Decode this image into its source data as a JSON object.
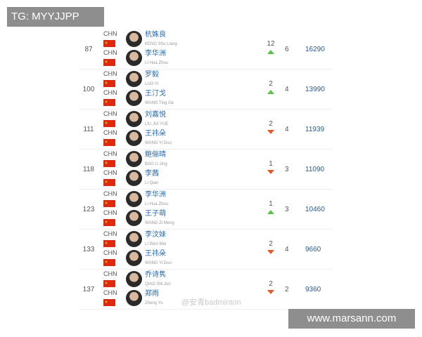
{
  "overlay": {
    "tg_label": "TG: MYYJJPP",
    "site_label": "www.marsann.com",
    "weibo_watermark": "@安青badminton"
  },
  "colors": {
    "up": "#5cbf4a",
    "down": "#e05a2b",
    "name": "#2a6aa8"
  },
  "rows": [
    {
      "rank": "87",
      "change": "12",
      "dir": "up",
      "count": "6",
      "points": "16290",
      "players": [
        {
          "country": "CHN",
          "cn": "杭姝良",
          "en": "KENG Shu Liang"
        },
        {
          "country": "CHN",
          "cn": "李华洲",
          "en": "LI Hua Zhou"
        }
      ]
    },
    {
      "rank": "100",
      "change": "2",
      "dir": "up",
      "count": "4",
      "points": "13990",
      "players": [
        {
          "country": "CHN",
          "cn": "罗毅",
          "en": "LUO YI"
        },
        {
          "country": "CHN",
          "cn": "王汀戈",
          "en": "WANG Ting Ge"
        }
      ]
    },
    {
      "rank": "111",
      "change": "2",
      "dir": "down",
      "count": "4",
      "points": "11939",
      "players": [
        {
          "country": "CHN",
          "cn": "刘嘉悦",
          "en": "LIU JIA YUE"
        },
        {
          "country": "CHN",
          "cn": "王祎朵",
          "en": "WANG Yi Duo"
        }
      ]
    },
    {
      "rank": "118",
      "change": "1",
      "dir": "down",
      "count": "3",
      "points": "11090",
      "players": [
        {
          "country": "CHN",
          "cn": "鲍俪晴",
          "en": "BAO Li Jing"
        },
        {
          "country": "CHN",
          "cn": "李茜",
          "en": "LI Qian"
        }
      ]
    },
    {
      "rank": "123",
      "change": "1",
      "dir": "up",
      "count": "3",
      "points": "10460",
      "players": [
        {
          "country": "CHN",
          "cn": "李华洲",
          "en": "LI Hua Zhou"
        },
        {
          "country": "CHN",
          "cn": "王子萌",
          "en": "WANG Zi Meng"
        }
      ]
    },
    {
      "rank": "133",
      "change": "2",
      "dir": "down",
      "count": "4",
      "points": "9660",
      "players": [
        {
          "country": "CHN",
          "cn": "李汶妹",
          "en": "LI Wen Mei"
        },
        {
          "country": "CHN",
          "cn": "王祎朵",
          "en": "WANG Yi Duo"
        }
      ]
    },
    {
      "rank": "137",
      "change": "2",
      "dir": "down",
      "count": "2",
      "points": "9360",
      "players": [
        {
          "country": "CHN",
          "cn": "乔诗隽",
          "en": "QIAO Shi Jun"
        },
        {
          "country": "CHN",
          "cn": "郑雨",
          "en": "Zheng Yu"
        }
      ]
    }
  ]
}
